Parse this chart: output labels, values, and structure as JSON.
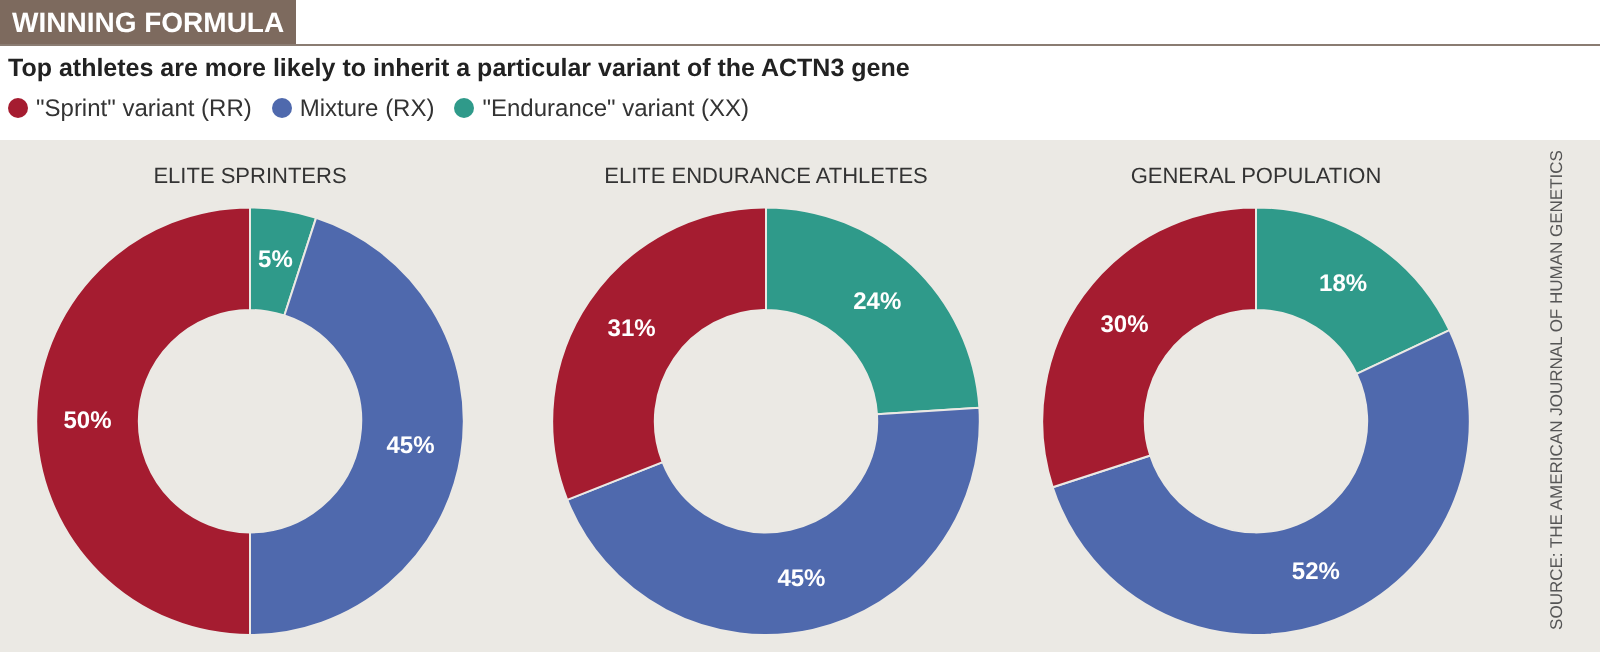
{
  "chart_data": [
    {
      "type": "donut",
      "title": "ELITE SPRINTERS",
      "categories": [
        "\"Sprint\" variant (RR)",
        "Mixture (RX)",
        "\"Endurance\" variant (XX)"
      ],
      "values": [
        50,
        45,
        5
      ],
      "value_labels": [
        "50%",
        "45%",
        "5%"
      ],
      "colors": [
        "#a51c30",
        "#4f69ad",
        "#2f9a8a"
      ],
      "legend": "top",
      "annotations": [
        "WINNING FORMULA",
        "Top athletes are more likely to inherit a particular variant of the ACTN3 gene"
      ]
    },
    {
      "type": "donut",
      "title": "ELITE ENDURANCE ATHLETES",
      "categories": [
        null,
        null,
        null
      ],
      "values": [
        31,
        45,
        24
      ],
      "value_labels": [
        "31%",
        "45%",
        "24%"
      ],
      "colors": [
        "#a51c30",
        "#4f69ad",
        "#2f9a8a"
      ]
    },
    {
      "type": "donut",
      "title": "GENERAL POPULATION",
      "categories": [
        null,
        null,
        null
      ],
      "values": [
        30,
        52,
        18
      ],
      "value_labels": [
        "30%",
        "52%",
        "18%"
      ],
      "colors": [
        "#a51c30",
        "#4f69ad",
        "#2f9a8a"
      ],
      "annotations": [
        "SOURCE: THE AMERICAN JOURNAL OF HUMAN GENETICS"
      ]
    }
  ]
}
